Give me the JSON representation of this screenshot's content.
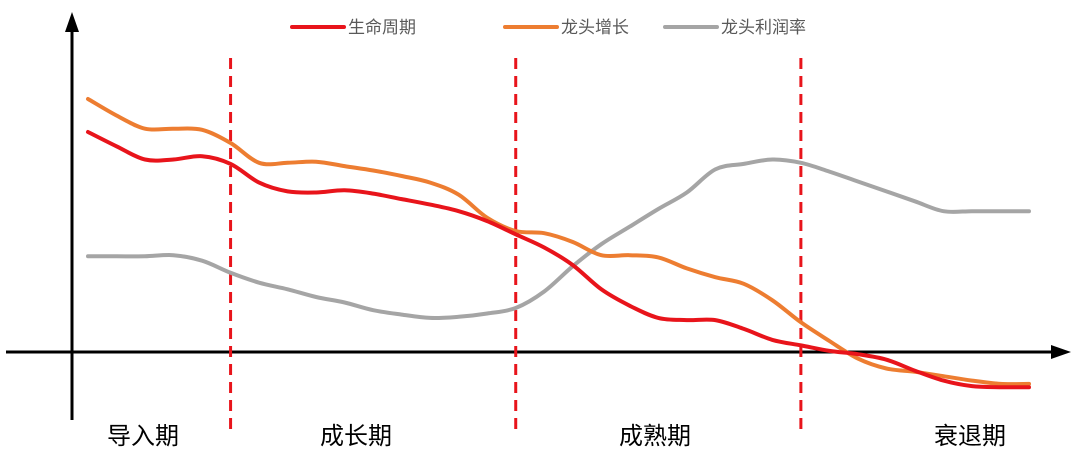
{
  "chart_data": {
    "type": "line",
    "x": [
      0,
      0.4,
      0.8,
      1.2,
      1.6,
      2.0,
      2.4,
      2.8,
      3.2,
      3.6,
      4.0,
      4.4,
      4.8,
      5.2,
      5.6,
      6.0,
      6.4,
      6.8,
      7.2,
      7.6,
      8.0,
      8.4,
      8.8,
      9.2,
      9.6,
      10.0,
      10.4,
      10.8,
      11.2,
      11.6,
      12.0,
      12.4,
      12.8,
      13.2
    ],
    "series": [
      {
        "name": "生命周期",
        "color": "#e8141b",
        "values": [
          200,
          187,
          175,
          175,
          178,
          171,
          154,
          146,
          145,
          147,
          144,
          139,
          134,
          128,
          119,
          107,
          95,
          79,
          57,
          42,
          31,
          29,
          29,
          21,
          11,
          6,
          1,
          -2,
          -7,
          -17,
          -26,
          -31,
          -32,
          -32
        ]
      },
      {
        "name": "龙头增长",
        "color": "#ed7d31",
        "values": [
          230,
          215,
          203,
          203,
          202,
          190,
          172,
          172,
          173,
          169,
          165,
          160,
          154,
          143,
          122,
          110,
          108,
          100,
          88,
          88,
          86,
          76,
          68,
          62,
          47,
          27,
          10,
          -6,
          -15,
          -18,
          -22,
          -26,
          -29,
          -29
        ]
      },
      {
        "name": "龙头利润率",
        "color": "#a5a5a5",
        "values": [
          87,
          87,
          87,
          88,
          83,
          72,
          63,
          57,
          50,
          45,
          38,
          34,
          31,
          32,
          35,
          40,
          55,
          78,
          98,
          114,
          130,
          145,
          166,
          171,
          175,
          172,
          164,
          155,
          146,
          137,
          128,
          128,
          128,
          128
        ]
      }
    ],
    "stages": [
      "导入期",
      "成长期",
      "成熟期",
      "衰退期"
    ],
    "stage_boundaries": [
      2,
      6,
      10
    ],
    "legend_position": "top-center",
    "grid": false,
    "axis_color": "#000000",
    "boundary_color": "#e8141b"
  }
}
